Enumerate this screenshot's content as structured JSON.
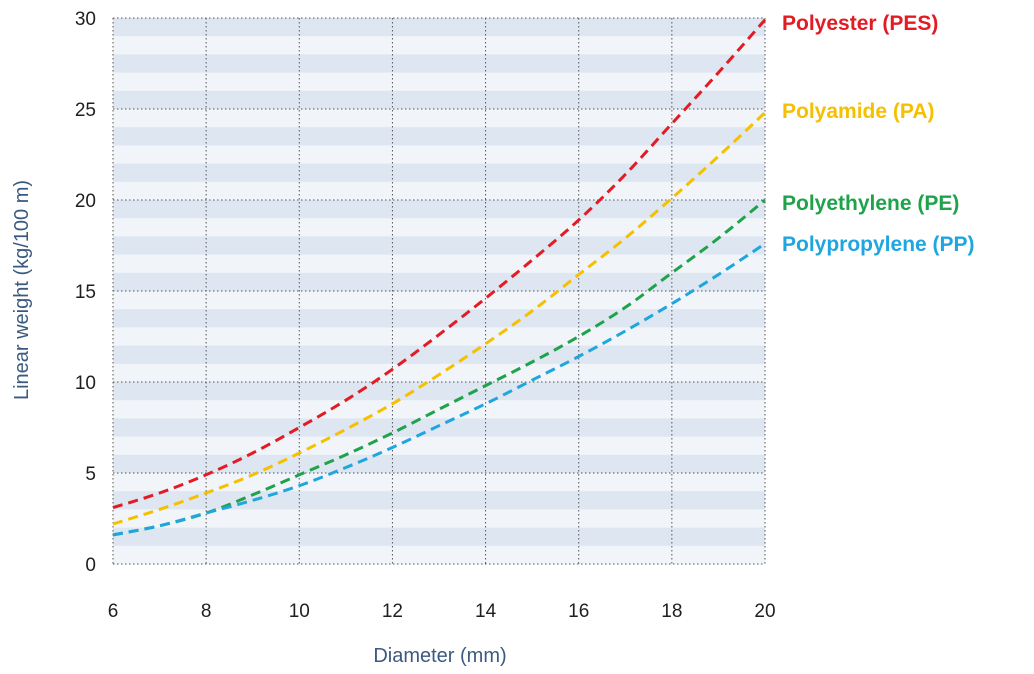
{
  "chart_data": {
    "type": "line",
    "title": "",
    "xlabel": "Diameter (mm)",
    "ylabel": "Linear weight (kg/100 m)",
    "xlim": [
      6,
      20
    ],
    "ylim": [
      0,
      30
    ],
    "xticks": [
      6,
      8,
      10,
      12,
      14,
      16,
      18,
      20
    ],
    "yticks": [
      0,
      5,
      10,
      15,
      20,
      25,
      30
    ],
    "grid": true,
    "line_style": "dashed",
    "legend_placement": "right, at line ends",
    "x": [
      6,
      7,
      8,
      9,
      10,
      11,
      12,
      13,
      14,
      15,
      16,
      17,
      18,
      19,
      20
    ],
    "series": [
      {
        "name": "Polyester (PES)",
        "color": "#e31b23",
        "values": [
          3.1,
          3.9,
          4.9,
          6.1,
          7.5,
          9.0,
          10.7,
          12.6,
          14.6,
          16.7,
          18.9,
          21.4,
          24.2,
          27.0,
          29.9
        ]
      },
      {
        "name": "Polyamide (PA)",
        "color": "#f5c000",
        "values": [
          2.2,
          3.0,
          3.9,
          4.9,
          6.1,
          7.4,
          8.8,
          10.4,
          12.1,
          13.9,
          15.9,
          17.9,
          20.1,
          22.4,
          24.8
        ]
      },
      {
        "name": "Polyethylene (PE)",
        "color": "#1fa34a",
        "values": [
          1.6,
          2.1,
          2.8,
          3.8,
          4.9,
          6.0,
          7.2,
          8.5,
          9.8,
          11.1,
          12.5,
          14.1,
          16.0,
          17.9,
          20.0
        ]
      },
      {
        "name": "Polypropylene (PP)",
        "color": "#1fa6de",
        "values": [
          1.6,
          2.1,
          2.8,
          3.5,
          4.3,
          5.3,
          6.4,
          7.6,
          8.8,
          10.1,
          11.4,
          12.8,
          14.3,
          15.9,
          17.6
        ]
      }
    ]
  }
}
